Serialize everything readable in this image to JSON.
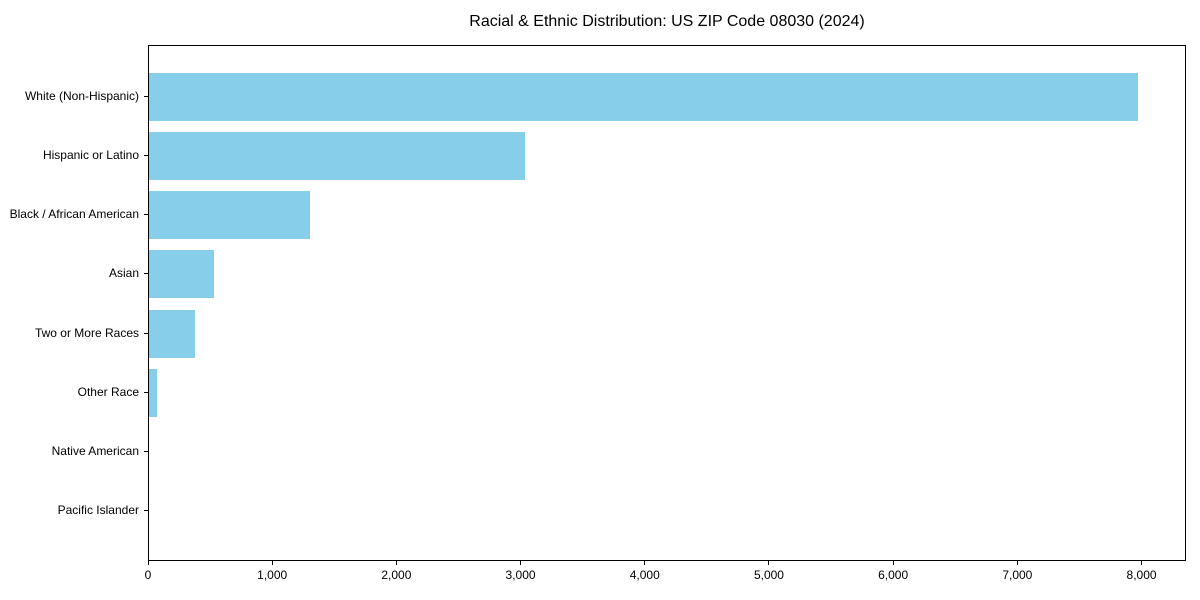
{
  "chart_data": {
    "type": "bar",
    "orientation": "horizontal",
    "title": "Racial & Ethnic Distribution: US ZIP Code 08030 (2024)",
    "categories": [
      "White (Non-Hispanic)",
      "Hispanic or Latino",
      "Black / African American",
      "Asian",
      "Two or More Races",
      "Other Race",
      "Native American",
      "Pacific Islander"
    ],
    "values": [
      7960,
      3030,
      1300,
      520,
      370,
      65,
      0,
      0
    ],
    "xlabel": "",
    "ylabel": "",
    "xlim": [
      0,
      8358
    ],
    "x_ticks": [
      0,
      1000,
      2000,
      3000,
      4000,
      5000,
      6000,
      7000,
      8000
    ],
    "x_tick_labels": [
      "0",
      "1,000",
      "2,000",
      "3,000",
      "4,000",
      "5,000",
      "6,000",
      "7,000",
      "8,000"
    ],
    "bar_color": "#87CEEB",
    "grid": false,
    "legend_position": "none"
  }
}
